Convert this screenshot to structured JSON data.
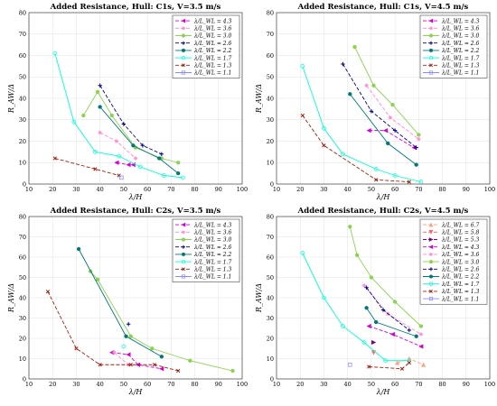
{
  "chart_data": [
    {
      "type": "line",
      "title": "Added Resistance, Hull: C1s, V=3.5 m/s",
      "xlabel": "λ/H",
      "ylabel": "R_AW/Δ",
      "xlim": [
        10,
        100
      ],
      "ylim": [
        0,
        80
      ],
      "xticks": [
        "10",
        "20",
        "30",
        "40",
        "50",
        "60",
        "70",
        "80",
        "90",
        "100"
      ],
      "yticks": [
        "0",
        "10",
        "20",
        "30",
        "40",
        "50",
        "60",
        "70",
        "80"
      ],
      "grid": true,
      "legend_position": "top-right",
      "series": [
        {
          "name": "λ/L_WL = 4.3",
          "color": "#d400d4",
          "dash": "4 2",
          "marker": "tri-left",
          "x": [
            47,
            52,
            54
          ],
          "y": [
            10,
            9,
            9
          ]
        },
        {
          "name": "λ/L_WL = 3.6",
          "color": "#ff8cd2",
          "dash": "4 2",
          "marker": "star",
          "x": [
            40,
            47,
            55
          ],
          "y": [
            24,
            20,
            12
          ]
        },
        {
          "name": "λ/L_WL = 3.0",
          "color": "#8cd250",
          "dash": "",
          "marker": "circle-filled",
          "x": [
            33,
            39,
            45,
            55,
            66,
            73
          ],
          "y": [
            32,
            43,
            32,
            17,
            12,
            10
          ]
        },
        {
          "name": "λ/L_WL = 2.6",
          "color": "#000080",
          "dash": "4 2",
          "marker": "plus",
          "x": [
            40,
            50,
            58,
            66
          ],
          "y": [
            46,
            28,
            18,
            14
          ]
        },
        {
          "name": "λ/L_WL = 2.2",
          "color": "#007878",
          "dash": "",
          "marker": "circle-filled",
          "x": [
            40,
            54,
            65,
            73
          ],
          "y": [
            36,
            18,
            12,
            5
          ]
        },
        {
          "name": "λ/L_WL = 1.7",
          "color": "#00ffd2",
          "dash": "",
          "marker": "circle-open",
          "x": [
            21,
            29,
            38,
            48,
            57,
            67,
            75
          ],
          "y": [
            61,
            29,
            15,
            13,
            8,
            4,
            3
          ]
        },
        {
          "name": "λ/L_WL = 1.3",
          "color": "#a02010",
          "dash": "4 2",
          "marker": "x",
          "x": [
            21,
            38,
            48
          ],
          "y": [
            12,
            7,
            4
          ]
        },
        {
          "name": "λ/L_WL = 1.1",
          "color": "#8888ff",
          "dash": "",
          "marker": "square-open",
          "x": [
            49
          ],
          "y": [
            3
          ]
        }
      ]
    },
    {
      "type": "line",
      "title": "Added Resistance, Hull: C1s, V=4.5 m/s",
      "xlabel": "λ/H",
      "ylabel": "R_AW/Δ",
      "xlim": [
        10,
        100
      ],
      "ylim": [
        0,
        80
      ],
      "xticks": [
        "10",
        "20",
        "30",
        "40",
        "50",
        "60",
        "70",
        "80",
        "90",
        "100"
      ],
      "yticks": [
        "0",
        "10",
        "20",
        "30",
        "40",
        "50",
        "60",
        "70",
        "80"
      ],
      "grid": true,
      "legend_position": "top-right",
      "series": [
        {
          "name": "λ/L_WL = 4.3",
          "color": "#d400d4",
          "dash": "4 2",
          "marker": "tri-left",
          "x": [
            49,
            56,
            68
          ],
          "y": [
            25,
            25,
            17
          ]
        },
        {
          "name": "λ/L_WL = 3.6",
          "color": "#ff8cd2",
          "dash": "4 2",
          "marker": "star",
          "x": [
            48,
            58,
            70
          ],
          "y": [
            46,
            31,
            21
          ]
        },
        {
          "name": "λ/L_WL = 3.0",
          "color": "#8cd250",
          "dash": "",
          "marker": "circle-filled",
          "x": [
            43,
            51,
            59,
            70
          ],
          "y": [
            64,
            46,
            37,
            23
          ]
        },
        {
          "name": "λ/L_WL = 2.6",
          "color": "#000080",
          "dash": "4 2",
          "marker": "plus",
          "x": [
            38,
            50,
            60,
            69
          ],
          "y": [
            56,
            34,
            25,
            17
          ]
        },
        {
          "name": "λ/L_WL = 2.2",
          "color": "#007878",
          "dash": "",
          "marker": "circle-filled",
          "x": [
            41,
            57,
            69
          ],
          "y": [
            42,
            19,
            9
          ]
        },
        {
          "name": "λ/L_WL = 1.7",
          "color": "#00ffd2",
          "dash": "",
          "marker": "circle-open",
          "x": [
            21,
            30,
            38,
            52,
            60,
            71
          ],
          "y": [
            55,
            26,
            14,
            7,
            4,
            1
          ]
        },
        {
          "name": "λ/L_WL = 1.3",
          "color": "#a02010",
          "dash": "4 2",
          "marker": "x",
          "x": [
            21,
            30,
            52,
            66
          ],
          "y": [
            32,
            18,
            2,
            1
          ]
        },
        {
          "name": "λ/L_WL = 1.1",
          "color": "#8888ff",
          "dash": "",
          "marker": "square-open",
          "x": [],
          "y": []
        }
      ]
    },
    {
      "type": "line",
      "title": "Added Resistance, Hull: C2s, V=3.5 m/s",
      "xlabel": "λ/H",
      "ylabel": "R_AW/Δ",
      "xlim": [
        10,
        100
      ],
      "ylim": [
        0,
        80
      ],
      "xticks": [
        "10",
        "20",
        "30",
        "40",
        "50",
        "60",
        "70",
        "80",
        "90",
        "100"
      ],
      "yticks": [
        "0",
        "10",
        "20",
        "30",
        "40",
        "50",
        "60",
        "70",
        "80"
      ],
      "grid": true,
      "legend_position": "top-right",
      "series": [
        {
          "name": "λ/L_WL = 4.3",
          "color": "#d400d4",
          "dash": "4 2",
          "marker": "tri-left",
          "x": [
            45,
            52,
            56,
            66
          ],
          "y": [
            13,
            12,
            7,
            5
          ]
        },
        {
          "name": "λ/L_WL = 3.6",
          "color": "#ff8cd2",
          "dash": "4 2",
          "marker": "star",
          "x": [
            46,
            52
          ],
          "y": [
            13,
            7
          ]
        },
        {
          "name": "λ/L_WL = 3.0",
          "color": "#8cd250",
          "dash": "",
          "marker": "circle-filled",
          "x": [
            36,
            39,
            53,
            62,
            78,
            96
          ],
          "y": [
            53,
            49,
            21,
            15,
            9,
            4
          ]
        },
        {
          "name": "λ/L_WL = 2.6",
          "color": "#000080",
          "dash": "4 2",
          "marker": "plus",
          "x": [
            52
          ],
          "y": [
            27
          ]
        },
        {
          "name": "λ/L_WL = 2.2",
          "color": "#007878",
          "dash": "",
          "marker": "circle-filled",
          "x": [
            31,
            51,
            66
          ],
          "y": [
            64,
            21,
            11
          ]
        },
        {
          "name": "λ/L_WL = 1.7",
          "color": "#00ffd2",
          "dash": "",
          "marker": "circle-open",
          "x": [
            50
          ],
          "y": [
            16
          ]
        },
        {
          "name": "λ/L_WL = 1.3",
          "color": "#a02010",
          "dash": "4 2",
          "marker": "x",
          "x": [
            18,
            30,
            40,
            53,
            63,
            73
          ],
          "y": [
            43,
            15,
            7,
            7,
            7,
            4
          ]
        },
        {
          "name": "λ/L_WL = 1.1",
          "color": "#8888ff",
          "dash": "",
          "marker": "square-open",
          "x": [],
          "y": []
        }
      ]
    },
    {
      "type": "line",
      "title": "Added Resistance, Hull: C2s, V=4.5 m/s",
      "xlabel": "λ/H",
      "ylabel": "R_AW/Δ",
      "xlim": [
        10,
        100
      ],
      "ylim": [
        0,
        80
      ],
      "xticks": [
        "10",
        "20",
        "30",
        "40",
        "50",
        "60",
        "70",
        "80",
        "90",
        "100"
      ],
      "yticks": [
        "0",
        "10",
        "20",
        "30",
        "40",
        "50",
        "60",
        "70",
        "80"
      ],
      "grid": true,
      "legend_position": "top-right",
      "series": [
        {
          "name": "λ/L_WL = 6.7",
          "color": "#ffa080",
          "dash": "4 2",
          "marker": "tri-up",
          "x": [
            61,
            66,
            72
          ],
          "y": [
            8,
            10,
            7
          ]
        },
        {
          "name": "λ/L_WL = 5.8",
          "color": "#ff6060",
          "dash": "4 2",
          "marker": "tri-down",
          "x": [
            51
          ],
          "y": [
            13
          ]
        },
        {
          "name": "λ/L_WL = 5.3",
          "color": "#800080",
          "dash": "4 2",
          "marker": "tri-right",
          "x": [
            51
          ],
          "y": [
            18
          ]
        },
        {
          "name": "λ/L_WL = 4.3",
          "color": "#d400d4",
          "dash": "4 2",
          "marker": "tri-left",
          "x": [
            49,
            59,
            71
          ],
          "y": [
            26,
            22,
            16
          ]
        },
        {
          "name": "λ/L_WL = 3.6",
          "color": "#ff8cd2",
          "dash": "4 2",
          "marker": "star",
          "x": [
            47,
            57,
            71
          ],
          "y": [
            46,
            32,
            22
          ]
        },
        {
          "name": "λ/L_WL = 3.0",
          "color": "#8cd250",
          "dash": "",
          "marker": "circle-filled",
          "x": [
            41,
            44,
            50,
            60,
            71
          ],
          "y": [
            75,
            61,
            50,
            38,
            26
          ]
        },
        {
          "name": "λ/L_WL = 2.6",
          "color": "#000080",
          "dash": "4 2",
          "marker": "plus",
          "x": [
            48,
            55,
            66
          ],
          "y": [
            45,
            34,
            24
          ]
        },
        {
          "name": "λ/L_WL = 2.2",
          "color": "#007878",
          "dash": "",
          "marker": "circle-filled",
          "x": [
            48,
            52,
            69
          ],
          "y": [
            35,
            28,
            21
          ]
        },
        {
          "name": "λ/L_WL = 1.7",
          "color": "#00ffd2",
          "dash": "",
          "marker": "circle-open",
          "x": [
            21,
            30,
            38,
            47,
            56,
            66
          ],
          "y": [
            62,
            40,
            26,
            18,
            9,
            9
          ]
        },
        {
          "name": "λ/L_WL = 1.3",
          "color": "#a02010",
          "dash": "4 2",
          "marker": "x",
          "x": [
            49,
            63,
            66
          ],
          "y": [
            6,
            5,
            8
          ]
        },
        {
          "name": "λ/L_WL = 1.1",
          "color": "#8888ff",
          "dash": "",
          "marker": "square-open",
          "x": [
            41
          ],
          "y": [
            7
          ]
        }
      ]
    }
  ]
}
